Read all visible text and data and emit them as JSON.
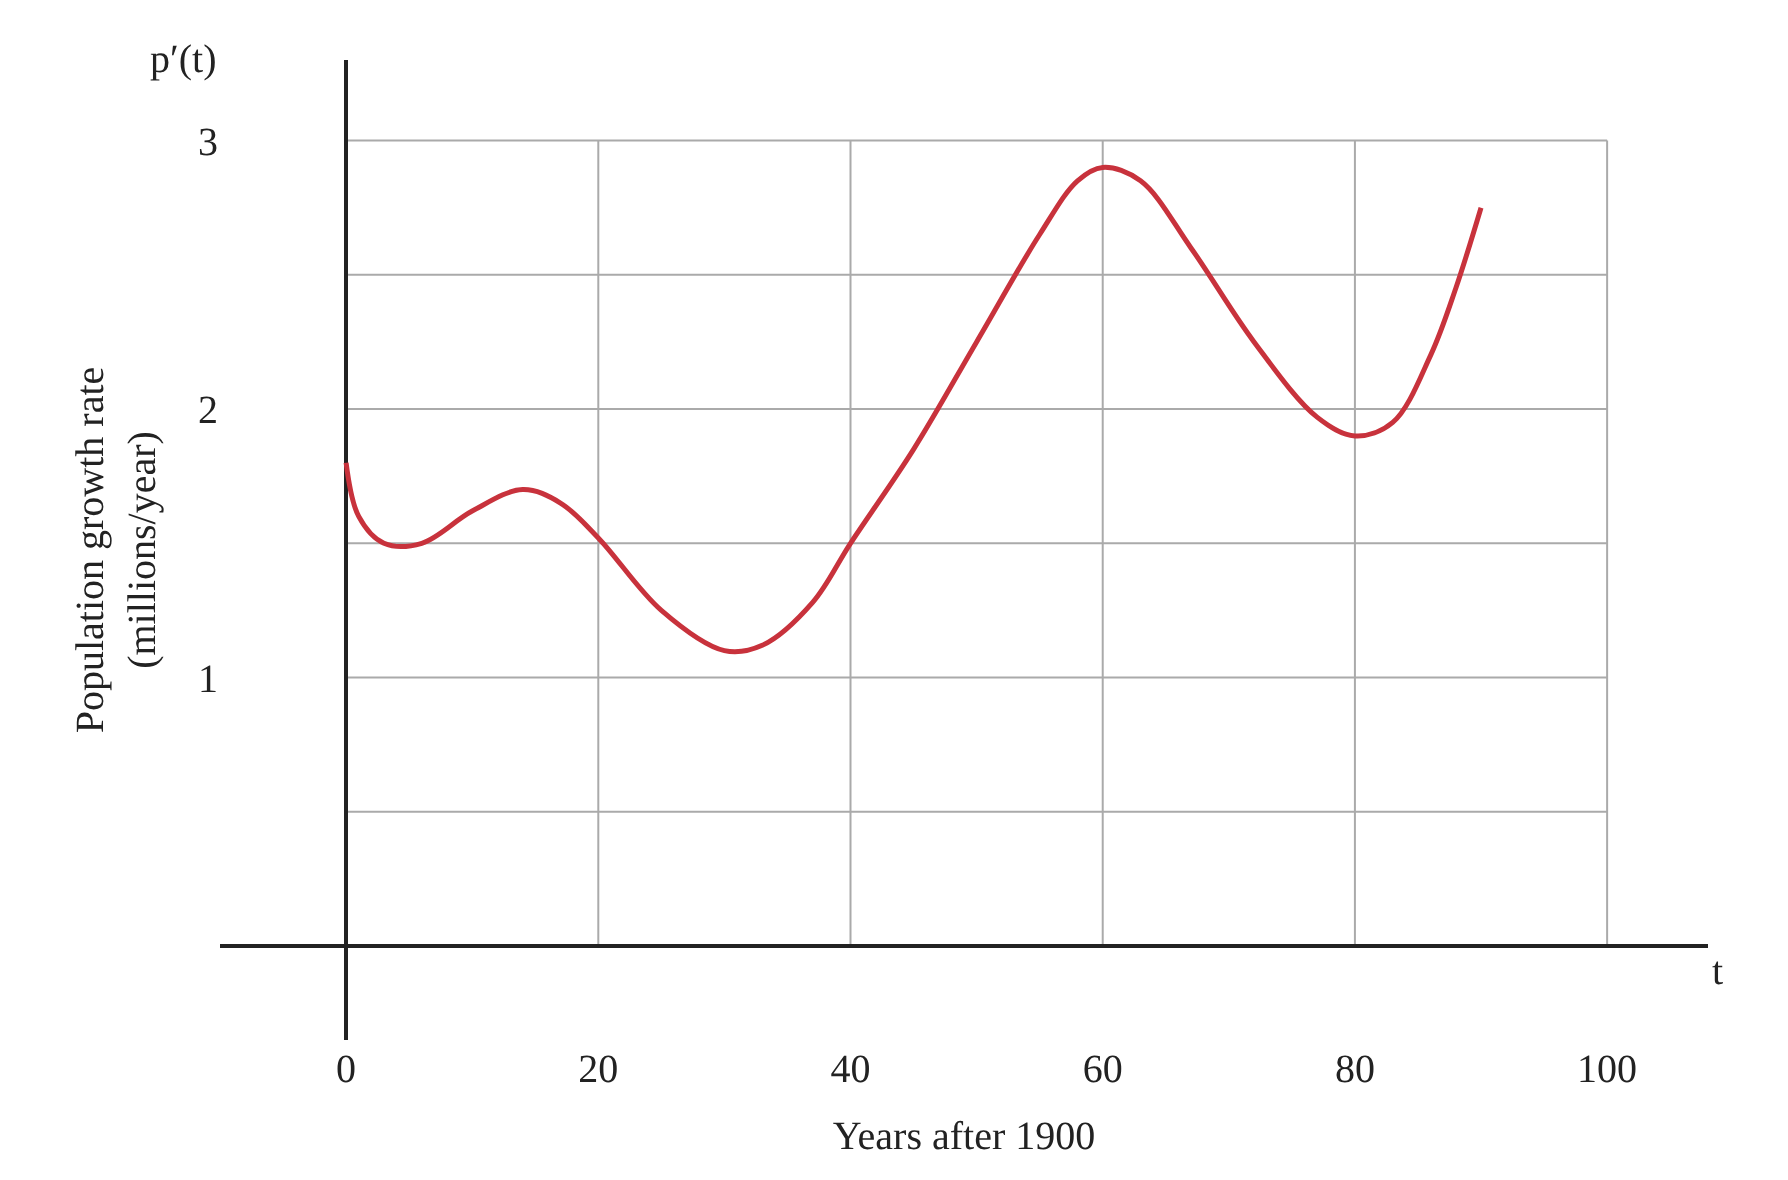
{
  "chart_data": {
    "type": "line",
    "xlabel": "Years after 1900",
    "ylabel": "Population growth rate\n(millions/year)",
    "annotations": [
      "p′(t)",
      "t"
    ],
    "x": [
      0,
      1,
      3,
      6,
      10,
      14,
      17,
      20,
      25,
      30,
      33,
      37,
      40,
      45,
      50,
      55,
      58,
      60,
      63,
      67,
      72,
      77,
      80,
      83,
      86,
      88,
      90
    ],
    "series": [
      {
        "color": "#c8323c",
        "values": [
          1.8,
          1.6,
          1.5,
          1.5,
          1.62,
          1.7,
          1.65,
          1.52,
          1.25,
          1.1,
          1.12,
          1.28,
          1.5,
          1.85,
          2.25,
          2.65,
          2.85,
          2.9,
          2.85,
          2.6,
          2.25,
          1.97,
          1.9,
          1.95,
          2.2,
          2.45,
          2.75
        ]
      }
    ],
    "xlim": [
      -10,
      108
    ],
    "ylim": [
      -0.35,
      3.3
    ],
    "xticks": [
      0,
      20,
      40,
      60,
      80,
      100
    ],
    "yticks": [
      {
        "value": 0.5,
        "label": null
      },
      1,
      {
        "value": 1.5,
        "label": null
      },
      2,
      {
        "value": 2.5,
        "label": null
      },
      3
    ],
    "grid": true,
    "legend": false,
    "marker": "none",
    "line_style": "solid"
  }
}
